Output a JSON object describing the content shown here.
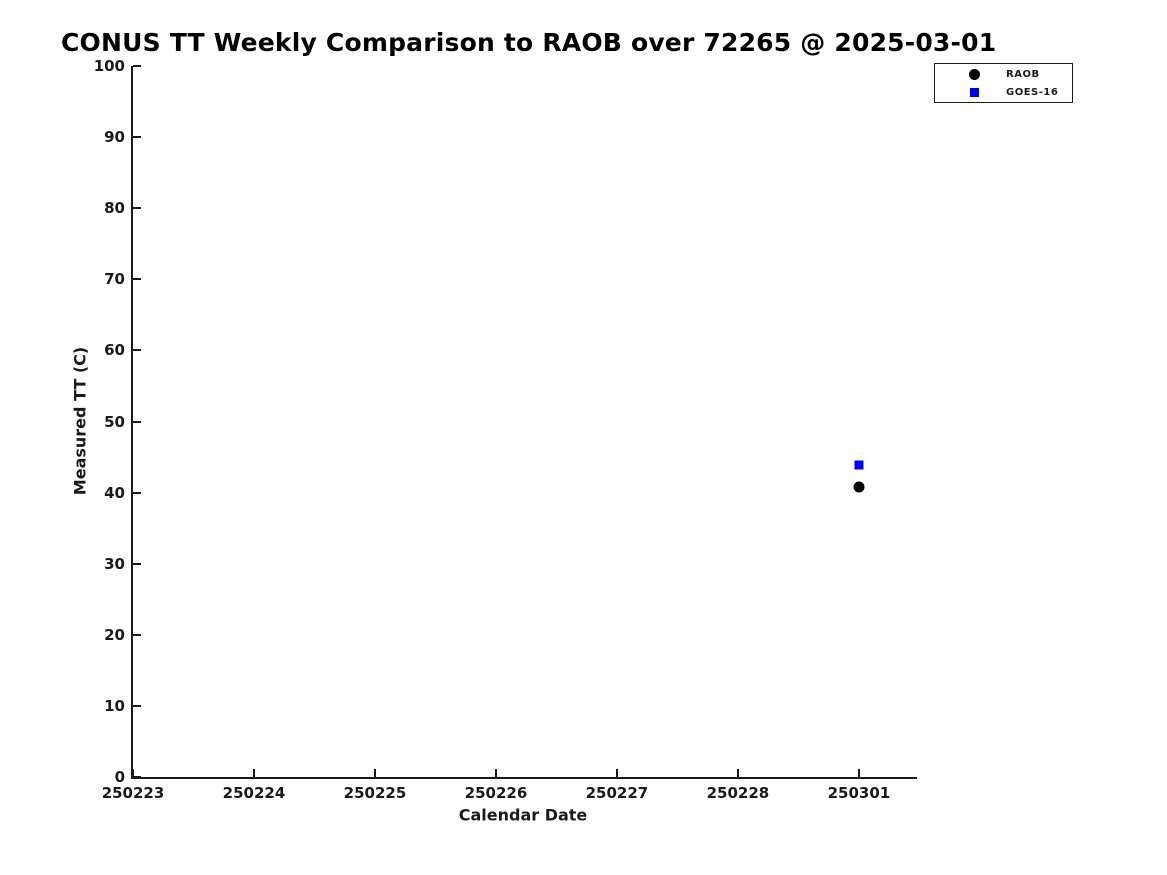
{
  "page": {
    "background": "#ffffff",
    "text_color": "#1a1a1a"
  },
  "chart_data": {
    "type": "scatter",
    "title": "CONUS TT Weekly Comparison to RAOB over 72265 @ 2025-03-01",
    "xlabel": "Calendar Date",
    "ylabel": "Measured TT (C)",
    "ylim": [
      0,
      100
    ],
    "y_ticks": [
      0,
      10,
      20,
      30,
      40,
      50,
      60,
      70,
      80,
      90,
      100
    ],
    "x_tick_labels": [
      "250223",
      "250224",
      "250225",
      "250226",
      "250227",
      "250228",
      "250301"
    ],
    "grid": false,
    "legend": {
      "position": "top-right-outside",
      "entries": [
        {
          "label": "RAOB",
          "marker": "circle",
          "color": "#000000"
        },
        {
          "label": "GOES-16",
          "marker": "square",
          "color": "#0000ee"
        }
      ]
    },
    "series": [
      {
        "name": "RAOB",
        "marker": "circle",
        "color": "#000000",
        "points": [
          {
            "x": "250301",
            "y": 40.8
          }
        ]
      },
      {
        "name": "GOES-16",
        "marker": "square",
        "color": "#0000ee",
        "points": [
          {
            "x": "250301",
            "y": 43.9
          }
        ]
      }
    ]
  }
}
